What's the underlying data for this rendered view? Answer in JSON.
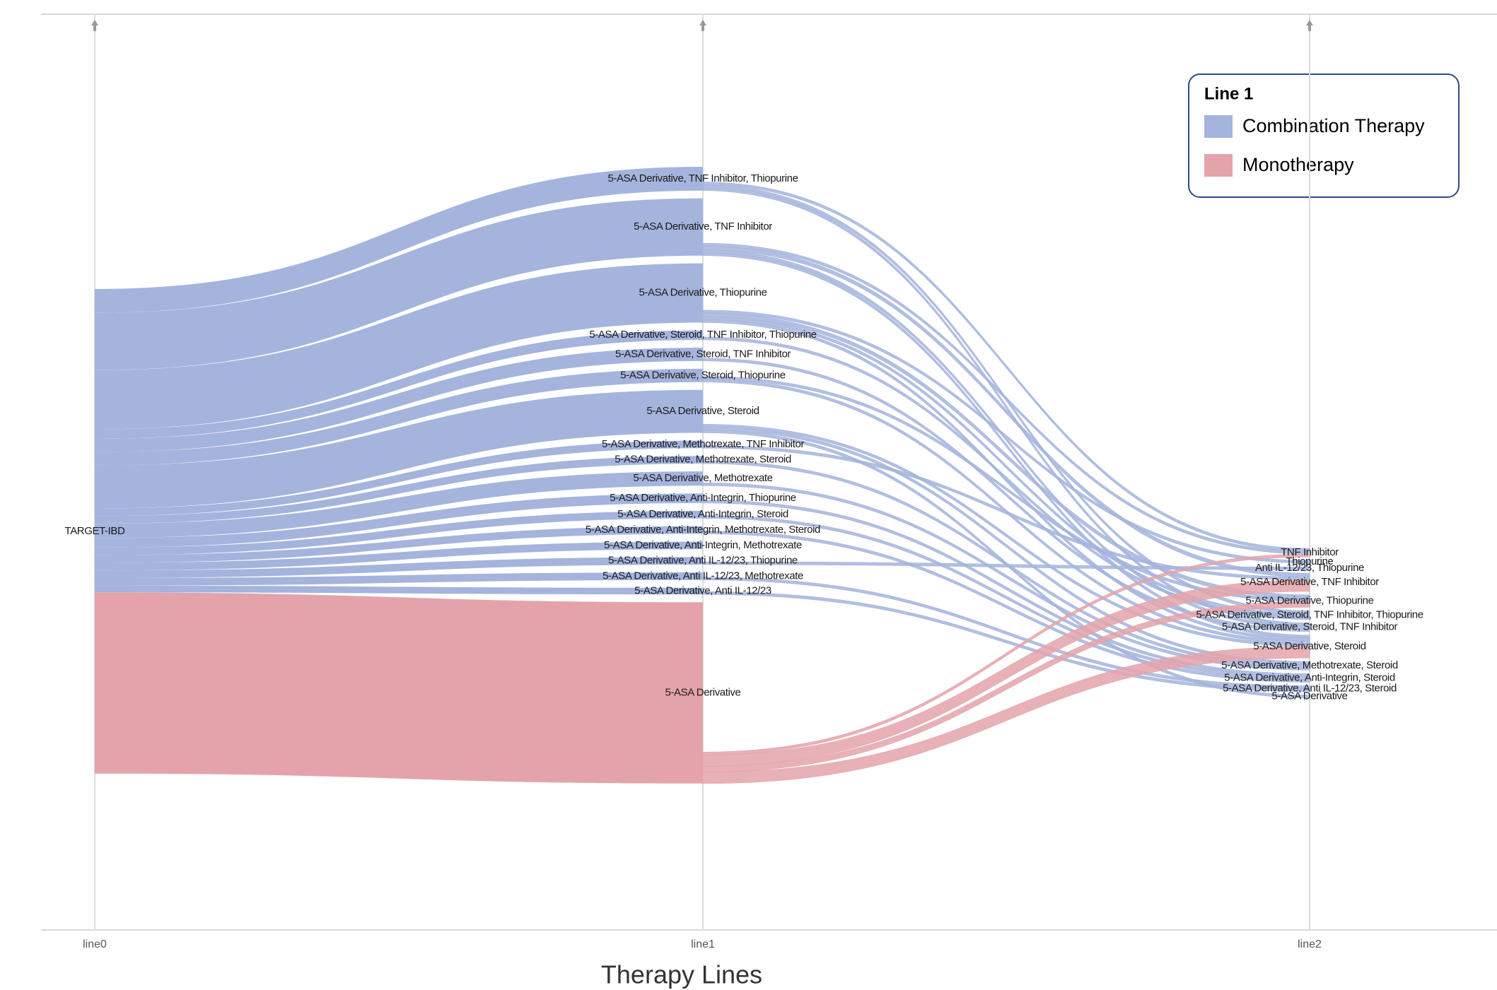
{
  "chart_data": {
    "type": "sankey",
    "x_label": "Therapy Lines",
    "columns": [
      "line0",
      "line1",
      "line2"
    ],
    "legend": {
      "title": "Line 1",
      "series": [
        {
          "name": "Combination Therapy",
          "color": "#a4b4dd"
        },
        {
          "name": "Monotherapy",
          "color": "#e4a3aa"
        }
      ]
    },
    "nodes": [
      {
        "name": "TARGET-IBD",
        "column": 0
      },
      {
        "name": "5-ASA Derivative, TNF Inhibitor, Thiopurine",
        "column": 1,
        "color": "#a4b4dd"
      },
      {
        "name": "5-ASA Derivative, TNF Inhibitor",
        "column": 1,
        "color": "#a4b4dd"
      },
      {
        "name": "5-ASA Derivative, Thiopurine",
        "column": 1,
        "color": "#a4b4dd"
      },
      {
        "name": "5-ASA Derivative, Steroid, TNF Inhibitor, Thiopurine",
        "column": 1,
        "color": "#a4b4dd"
      },
      {
        "name": "5-ASA Derivative, Steroid, TNF Inhibitor",
        "column": 1,
        "color": "#a4b4dd"
      },
      {
        "name": "5-ASA Derivative, Steroid, Thiopurine",
        "column": 1,
        "color": "#a4b4dd"
      },
      {
        "name": "5-ASA Derivative, Steroid",
        "column": 1,
        "color": "#a4b4dd"
      },
      {
        "name": "5-ASA Derivative, Methotrexate, TNF Inhibitor",
        "column": 1,
        "color": "#a4b4dd"
      },
      {
        "name": "5-ASA Derivative, Methotrexate, Steroid",
        "column": 1,
        "color": "#a4b4dd"
      },
      {
        "name": "5-ASA Derivative, Methotrexate",
        "column": 1,
        "color": "#a4b4dd"
      },
      {
        "name": "5-ASA Derivative, Anti-Integrin, Thiopurine",
        "column": 1,
        "color": "#a4b4dd"
      },
      {
        "name": "5-ASA Derivative, Anti-Integrin, Steroid",
        "column": 1,
        "color": "#a4b4dd"
      },
      {
        "name": "5-ASA Derivative, Anti-Integrin, Methotrexate, Steroid",
        "column": 1,
        "color": "#a4b4dd"
      },
      {
        "name": "5-ASA Derivative, Anti-Integrin, Methotrexate",
        "column": 1,
        "color": "#a4b4dd"
      },
      {
        "name": "5-ASA Derivative, Anti IL-12/23, Thiopurine",
        "column": 1,
        "color": "#a4b4dd"
      },
      {
        "name": "5-ASA Derivative, Anti IL-12/23, Methotrexate",
        "column": 1,
        "color": "#a4b4dd"
      },
      {
        "name": "5-ASA Derivative, Anti IL-12/23",
        "column": 1,
        "color": "#a4b4dd"
      },
      {
        "name": "5-ASA Derivative",
        "column": 1,
        "color": "#e4a3aa"
      },
      {
        "name": "TNF Inhibitor",
        "column": 2
      },
      {
        "name": "Thiopurine",
        "column": 2
      },
      {
        "name": "Anti IL-12/23, Thiopurine",
        "column": 2
      },
      {
        "name": "5-ASA Derivative, TNF Inhibitor",
        "column": 2
      },
      {
        "name": "5-ASA Derivative, Thiopurine",
        "column": 2
      },
      {
        "name": "5-ASA Derivative, Steroid, TNF Inhibitor, Thiopurine",
        "column": 2
      },
      {
        "name": "5-ASA Derivative, Steroid, TNF Inhibitor",
        "column": 2
      },
      {
        "name": "5-ASA Derivative, Steroid",
        "column": 2
      },
      {
        "name": "5-ASA Derivative, Methotrexate, Steroid",
        "column": 2
      },
      {
        "name": "5-ASA Derivative, Anti-Integrin, Steroid",
        "column": 2
      },
      {
        "name": "5-ASA Derivative, Anti IL-12/23, Steroid",
        "column": 2
      },
      {
        "name": "5-ASA Derivative",
        "column": 2
      }
    ],
    "links": [
      {
        "source": 0,
        "target": 1,
        "value": 25
      },
      {
        "source": 0,
        "target": 2,
        "value": 60
      },
      {
        "source": 0,
        "target": 3,
        "value": 62
      },
      {
        "source": 0,
        "target": 4,
        "value": 10
      },
      {
        "source": 0,
        "target": 5,
        "value": 14
      },
      {
        "source": 0,
        "target": 6,
        "value": 14
      },
      {
        "source": 0,
        "target": 7,
        "value": 45
      },
      {
        "source": 0,
        "target": 8,
        "value": 8
      },
      {
        "source": 0,
        "target": 9,
        "value": 8
      },
      {
        "source": 0,
        "target": 10,
        "value": 15
      },
      {
        "source": 0,
        "target": 11,
        "value": 10
      },
      {
        "source": 0,
        "target": 12,
        "value": 8
      },
      {
        "source": 0,
        "target": 13,
        "value": 8
      },
      {
        "source": 0,
        "target": 14,
        "value": 8
      },
      {
        "source": 0,
        "target": 15,
        "value": 8
      },
      {
        "source": 0,
        "target": 16,
        "value": 8
      },
      {
        "source": 0,
        "target": 17,
        "value": 7
      },
      {
        "source": 0,
        "target": 18,
        "value": 190
      },
      {
        "source": 1,
        "target": 19,
        "value": 3
      },
      {
        "source": 1,
        "target": 24,
        "value": 3
      },
      {
        "source": 1,
        "target": 25,
        "value": 3
      },
      {
        "source": 2,
        "target": 19,
        "value": 3
      },
      {
        "source": 2,
        "target": 22,
        "value": 4
      },
      {
        "source": 2,
        "target": 25,
        "value": 3
      },
      {
        "source": 2,
        "target": 26,
        "value": 3
      },
      {
        "source": 3,
        "target": 20,
        "value": 3
      },
      {
        "source": 3,
        "target": 23,
        "value": 4
      },
      {
        "source": 3,
        "target": 24,
        "value": 3
      },
      {
        "source": 3,
        "target": 26,
        "value": 3
      },
      {
        "source": 4,
        "target": 24,
        "value": 3
      },
      {
        "source": 5,
        "target": 25,
        "value": 3
      },
      {
        "source": 6,
        "target": 23,
        "value": 3
      },
      {
        "source": 6,
        "target": 26,
        "value": 3
      },
      {
        "source": 7,
        "target": 26,
        "value": 3
      },
      {
        "source": 7,
        "target": 27,
        "value": 3
      },
      {
        "source": 7,
        "target": 30,
        "value": 3
      },
      {
        "source": 8,
        "target": 22,
        "value": 3
      },
      {
        "source": 9,
        "target": 27,
        "value": 3
      },
      {
        "source": 10,
        "target": 27,
        "value": 3
      },
      {
        "source": 11,
        "target": 28,
        "value": 3
      },
      {
        "source": 12,
        "target": 28,
        "value": 3
      },
      {
        "source": 13,
        "target": 28,
        "value": 3
      },
      {
        "source": 15,
        "target": 21,
        "value": 3
      },
      {
        "source": 16,
        "target": 29,
        "value": 3
      },
      {
        "source": 17,
        "target": 29,
        "value": 3
      },
      {
        "source": 18,
        "target": 19,
        "value": 3
      },
      {
        "source": 18,
        "target": 22,
        "value": 12
      },
      {
        "source": 18,
        "target": 23,
        "value": 6
      },
      {
        "source": 18,
        "target": 26,
        "value": 12
      }
    ]
  }
}
